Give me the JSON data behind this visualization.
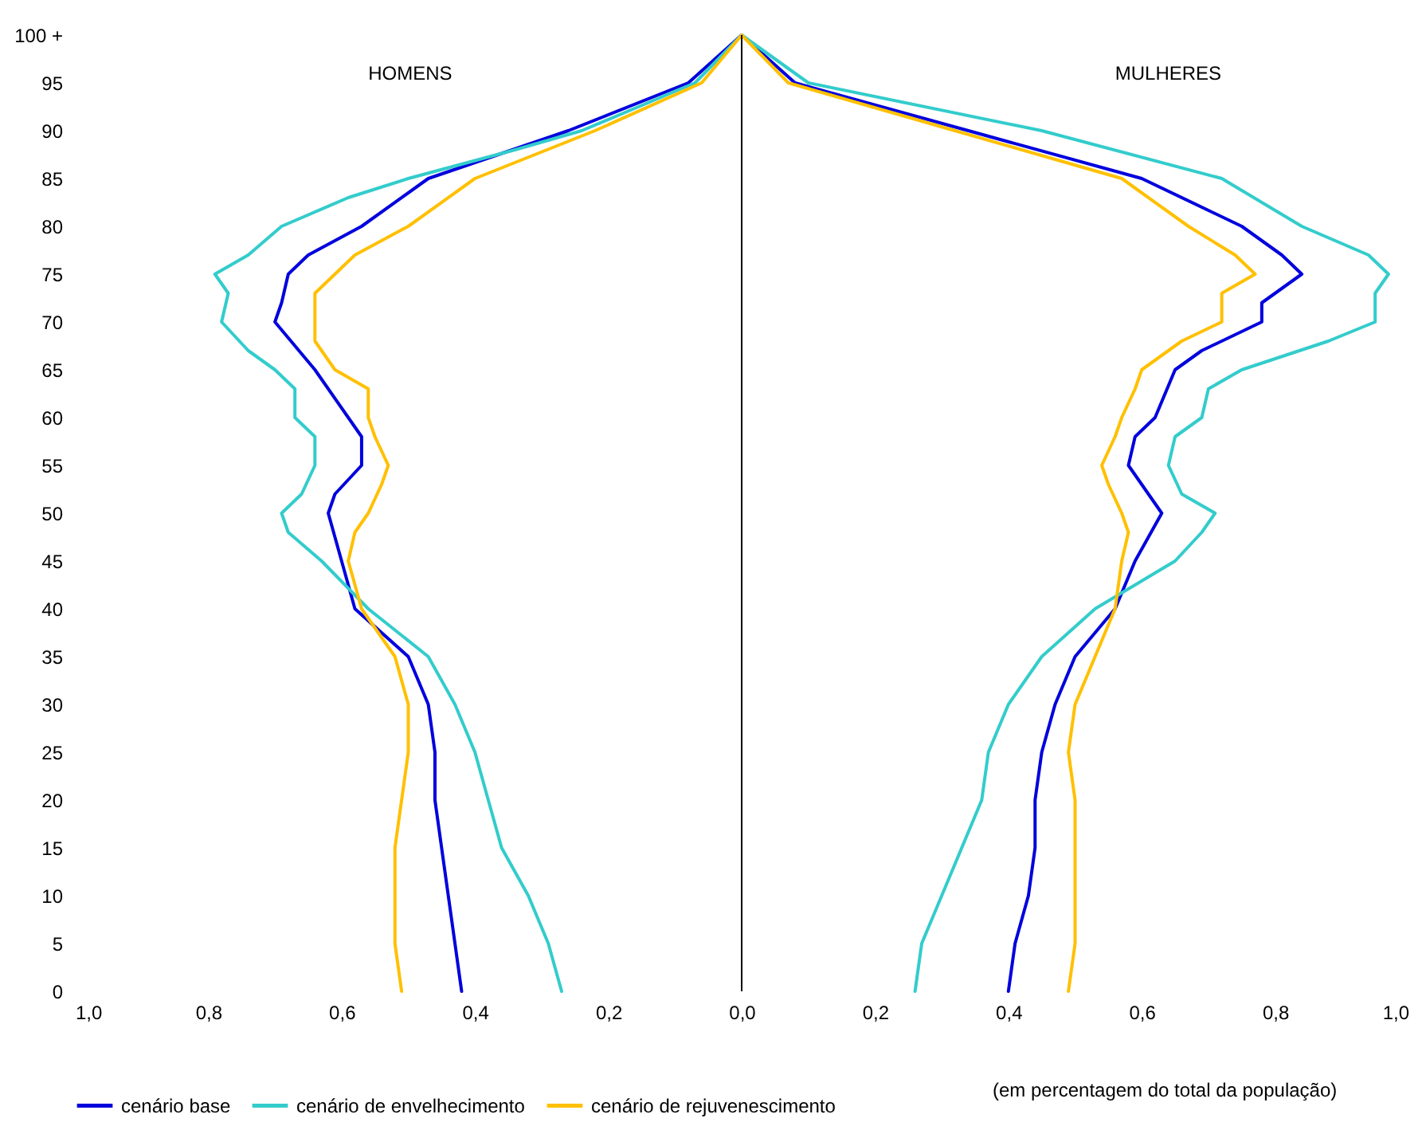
{
  "chart_data": {
    "type": "line",
    "annotations": [
      "HOMENS",
      "MULHERES",
      "(em percentagem do total da população)"
    ],
    "xlim": [
      -1,
      1
    ],
    "xticks": [
      {
        "value": -1,
        "label": "1,0"
      },
      {
        "value": -0.8,
        "label": "0,8"
      },
      {
        "value": -0.6,
        "label": "0,6"
      },
      {
        "value": -0.4,
        "label": "0,4"
      },
      {
        "value": -0.2,
        "label": "0,2"
      },
      {
        "value": 0,
        "label": "0,0"
      },
      {
        "value": 0.2,
        "label": "0,2"
      },
      {
        "value": 0.4,
        "label": "0,4"
      },
      {
        "value": 0.6,
        "label": "0,6"
      },
      {
        "value": 0.8,
        "label": "0,8"
      },
      {
        "value": 1,
        "label": "1,0"
      }
    ],
    "ylim": [
      0,
      100
    ],
    "yticks": [
      0,
      5,
      10,
      15,
      20,
      25,
      30,
      35,
      40,
      45,
      50,
      55,
      60,
      65,
      70,
      75,
      80,
      85,
      90,
      95,
      {
        "value": 100,
        "label": "100 +"
      }
    ],
    "grid": false,
    "legend": "bottom",
    "marker": "none",
    "line_style": "solid",
    "ref_lines": [
      {
        "axis": "x",
        "value": 0,
        "color": "#000000"
      }
    ],
    "series": [
      {
        "name": "cenário base",
        "color": "#0000dd",
        "x": [
          -0.42,
          -0.43,
          -0.44,
          -0.45,
          -0.46,
          -0.46,
          -0.47,
          -0.5,
          -0.58,
          -0.6,
          -0.62,
          -0.61,
          -0.57,
          -0.57,
          -0.59,
          -0.64,
          -0.7,
          -0.69,
          -0.68,
          -0.65,
          -0.57,
          -0.47,
          -0.26,
          -0.08,
          0,
          0.08,
          0.34,
          0.6,
          0.75,
          0.81,
          0.84,
          0.78,
          0.78,
          0.69,
          0.65,
          0.62,
          0.59,
          0.58,
          0.61,
          0.63,
          0.59,
          0.56,
          0.5,
          0.47,
          0.45,
          0.44,
          0.44,
          0.43,
          0.41,
          0.4
        ],
        "values": [
          0,
          5,
          10,
          15,
          20,
          25,
          30,
          35,
          40,
          45,
          50,
          52,
          55,
          58,
          60,
          65,
          70,
          72,
          75,
          77,
          80,
          85,
          90,
          95,
          100,
          95,
          90,
          85,
          80,
          77,
          75,
          72,
          70,
          67,
          65,
          60,
          58,
          55,
          52,
          50,
          45,
          40,
          35,
          30,
          25,
          20,
          15,
          10,
          5,
          0
        ]
      },
      {
        "name": "cenário de envelhecimento",
        "color": "#33cccc",
        "x": [
          -0.27,
          -0.29,
          -0.32,
          -0.36,
          -0.38,
          -0.4,
          -0.43,
          -0.47,
          -0.56,
          -0.63,
          -0.68,
          -0.69,
          -0.66,
          -0.64,
          -0.64,
          -0.67,
          -0.67,
          -0.7,
          -0.74,
          -0.78,
          -0.77,
          -0.79,
          -0.74,
          -0.69,
          -0.59,
          -0.5,
          -0.34,
          -0.24,
          -0.07,
          0,
          0.1,
          0.45,
          0.72,
          0.84,
          0.94,
          0.97,
          0.95,
          0.95,
          0.88,
          0.75,
          0.7,
          0.69,
          0.65,
          0.64,
          0.66,
          0.71,
          0.69,
          0.65,
          0.53,
          0.45,
          0.4,
          0.37,
          0.36,
          0.33,
          0.3,
          0.27,
          0.26
        ],
        "values": [
          0,
          5,
          10,
          15,
          20,
          25,
          30,
          35,
          40,
          45,
          48,
          50,
          52,
          55,
          58,
          60,
          63,
          65,
          67,
          70,
          73,
          75,
          77,
          80,
          83,
          85,
          88,
          90,
          95,
          100,
          95,
          90,
          85,
          80,
          77,
          75,
          73,
          70,
          68,
          65,
          63,
          60,
          58,
          55,
          52,
          50,
          48,
          45,
          40,
          35,
          30,
          25,
          20,
          15,
          10,
          5,
          0
        ]
      },
      {
        "name": "cenário de rejuvenescimento",
        "color": "#ffc000",
        "x": [
          -0.51,
          -0.52,
          -0.52,
          -0.52,
          -0.51,
          -0.5,
          -0.5,
          -0.52,
          -0.57,
          -0.59,
          -0.58,
          -0.56,
          -0.54,
          -0.53,
          -0.55,
          -0.56,
          -0.56,
          -0.61,
          -0.64,
          -0.64,
          -0.64,
          -0.61,
          -0.58,
          -0.5,
          -0.4,
          -0.22,
          -0.06,
          0,
          0.07,
          0.32,
          0.57,
          0.67,
          0.74,
          0.77,
          0.72,
          0.72,
          0.66,
          0.6,
          0.59,
          0.57,
          0.56,
          0.54,
          0.55,
          0.57,
          0.58,
          0.57,
          0.56,
          0.53,
          0.5,
          0.49,
          0.5,
          0.5,
          0.5,
          0.5,
          0.49
        ],
        "values": [
          0,
          5,
          10,
          15,
          20,
          25,
          30,
          35,
          40,
          45,
          48,
          50,
          53,
          55,
          58,
          60,
          63,
          65,
          68,
          70,
          73,
          75,
          77,
          80,
          85,
          90,
          95,
          100,
          95,
          90,
          85,
          80,
          77,
          75,
          73,
          70,
          68,
          65,
          63,
          60,
          58,
          55,
          53,
          50,
          48,
          45,
          40,
          35,
          30,
          25,
          20,
          15,
          10,
          5,
          0
        ]
      }
    ]
  }
}
